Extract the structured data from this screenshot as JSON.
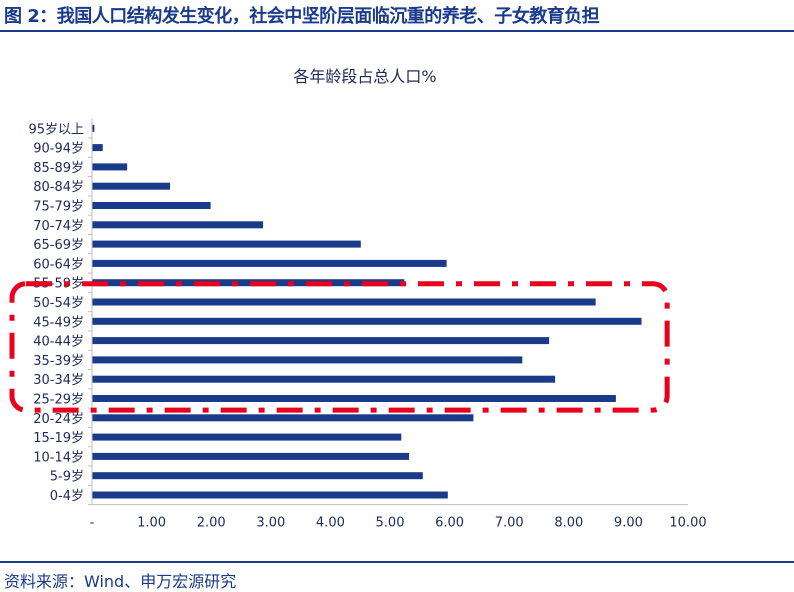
{
  "figure": {
    "title": "图 2：我国人口结构发生变化，社会中坚阶层面临沉重的养老、子女教育负担",
    "source": "资料来源：Wind、申万宏源研究"
  },
  "chart_data": {
    "type": "bar",
    "orientation": "horizontal",
    "title": "各年龄段占总人口%",
    "categories": [
      "0-4岁",
      "5-9岁",
      "10-14岁",
      "15-19岁",
      "20-24岁",
      "25-29岁",
      "30-34岁",
      "35-39岁",
      "40-44岁",
      "45-49岁",
      "50-54岁",
      "55-59岁",
      "60-64岁",
      "65-69岁",
      "70-74岁",
      "75-79岁",
      "80-84岁",
      "85-89岁",
      "90-94岁",
      "95岁以上"
    ],
    "values": [
      5.97,
      5.55,
      5.32,
      5.19,
      6.4,
      8.79,
      7.77,
      7.22,
      7.67,
      9.22,
      8.45,
      5.24,
      5.95,
      4.51,
      2.87,
      1.99,
      1.31,
      0.59,
      0.18,
      0.04
    ],
    "xlim": [
      0,
      10
    ],
    "x_tick_labels": [
      "-",
      "1.00",
      "2.00",
      "3.00",
      "4.00",
      "5.00",
      "6.00",
      "7.00",
      "8.00",
      "9.00",
      "10.00"
    ],
    "bar_color": "#1a3a8a",
    "grid": false,
    "legend": "none",
    "highlight": {
      "from_category": "25-29岁",
      "to_category": "55-59岁",
      "color": "#e8001c",
      "style": "dash-dot rounded box"
    }
  }
}
